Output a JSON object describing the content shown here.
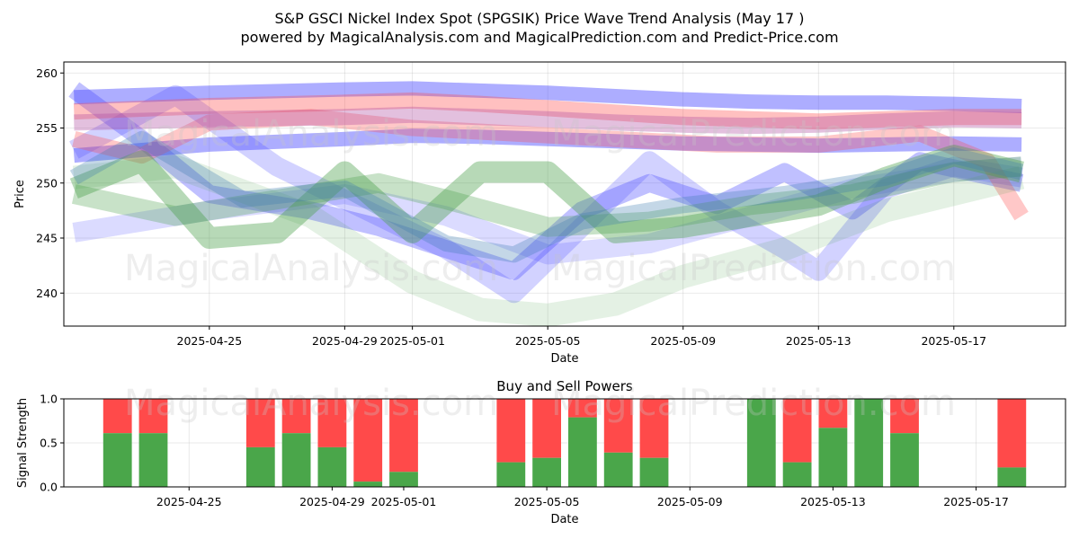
{
  "figure": {
    "title_line1": "S&P GSCI Nickel Index Spot (SPGSIK) Price Wave Trend Analysis (May 17 )",
    "title_line2": "powered by MagicalAnalysis.com and MagicalPrediction.com and Predict-Price.com",
    "watermark_left": "MagicalAnalysis.com",
    "watermark_right": "MagicalPrediction.com"
  },
  "chart_data": [
    {
      "type": "area",
      "xlabel": "Date",
      "ylabel": "Price",
      "x_range": [
        "2025-04-21",
        "2025-05-20"
      ],
      "ylim": [
        237,
        261
      ],
      "yticks": [
        240,
        245,
        250,
        255,
        260
      ],
      "xticks": [
        "2025-04-25",
        "2025-04-29",
        "2025-05-01",
        "2025-05-05",
        "2025-05-09",
        "2025-05-13",
        "2025-05-17"
      ],
      "grid": true,
      "series": [
        {
          "color": "#4a4aff",
          "opacity": 0.45,
          "width": 16,
          "x": [
            "2025-04-21",
            "2025-04-25",
            "2025-04-29",
            "2025-05-01",
            "2025-05-03",
            "2025-05-05",
            "2025-05-07",
            "2025-05-09",
            "2025-05-11",
            "2025-05-13",
            "2025-05-15",
            "2025-05-17",
            "2025-05-19"
          ],
          "y": [
            257.8,
            258.2,
            258.5,
            258.6,
            258.4,
            258.2,
            257.9,
            257.6,
            257.4,
            257.3,
            257.3,
            257.2,
            257.0
          ]
        },
        {
          "color": "#4a4aff",
          "opacity": 0.45,
          "width": 16,
          "x": [
            "2025-04-21",
            "2025-04-25",
            "2025-04-29",
            "2025-05-01",
            "2025-05-03",
            "2025-05-05",
            "2025-05-07",
            "2025-05-09",
            "2025-05-11",
            "2025-05-13",
            "2025-05-15",
            "2025-05-17",
            "2025-05-19"
          ],
          "y": [
            252.5,
            253.5,
            254.0,
            254.3,
            254.2,
            254.0,
            253.8,
            253.6,
            253.5,
            253.4,
            253.5,
            253.6,
            253.5
          ]
        },
        {
          "color": "#4a4aff",
          "opacity": 0.35,
          "width": 20,
          "x": [
            "2025-04-21",
            "2025-04-23",
            "2025-04-25",
            "2025-04-28",
            "2025-04-30",
            "2025-05-02",
            "2025-05-04",
            "2025-05-06",
            "2025-05-08",
            "2025-05-10",
            "2025-05-12",
            "2025-05-14",
            "2025-05-16",
            "2025-05-19"
          ],
          "y": [
            258.5,
            254.0,
            249.0,
            247.5,
            246.0,
            244.0,
            242.0,
            247.5,
            250.0,
            248.0,
            251.0,
            247.5,
            252.0,
            250.0
          ]
        },
        {
          "color": "#4a4aff",
          "opacity": 0.25,
          "width": 22,
          "x": [
            "2025-04-21",
            "2025-04-24",
            "2025-04-27",
            "2025-04-30",
            "2025-05-02",
            "2025-05-04",
            "2025-05-06",
            "2025-05-08",
            "2025-05-10",
            "2025-05-12",
            "2025-05-13",
            "2025-05-15",
            "2025-05-17",
            "2025-05-19"
          ],
          "y": [
            253.0,
            258.0,
            251.5,
            247.0,
            244.0,
            240.0,
            246.0,
            252.0,
            247.5,
            244.0,
            242.0,
            249.5,
            251.5,
            250.5
          ]
        },
        {
          "color": "#4a4aff",
          "opacity": 0.2,
          "width": 22,
          "x": [
            "2025-04-21",
            "2025-04-25",
            "2025-04-29",
            "2025-05-02",
            "2025-05-05",
            "2025-05-08",
            "2025-05-11",
            "2025-05-14",
            "2025-05-17",
            "2025-05-19"
          ],
          "y": [
            245.5,
            247.5,
            249.0,
            247.0,
            243.5,
            244.5,
            247.0,
            249.5,
            251.0,
            251.5
          ]
        },
        {
          "color": "#ff4a4a",
          "opacity": 0.35,
          "width": 18,
          "x": [
            "2025-04-21",
            "2025-04-25",
            "2025-04-29",
            "2025-05-01",
            "2025-05-03",
            "2025-05-05",
            "2025-05-07",
            "2025-05-09",
            "2025-05-11",
            "2025-05-13",
            "2025-05-15",
            "2025-05-17",
            "2025-05-19"
          ],
          "y": [
            256.5,
            257.0,
            257.3,
            257.5,
            257.2,
            256.8,
            256.4,
            256.0,
            255.8,
            255.6,
            255.8,
            256.0,
            256.0
          ]
        },
        {
          "color": "#ff4a4a",
          "opacity": 0.3,
          "width": 18,
          "x": [
            "2025-04-21",
            "2025-04-23",
            "2025-04-25",
            "2025-04-28",
            "2025-05-01",
            "2025-05-04",
            "2025-05-07",
            "2025-05-10",
            "2025-05-13",
            "2025-05-16",
            "2025-05-18",
            "2025-05-19"
          ],
          "y": [
            254.0,
            252.5,
            255.5,
            256.0,
            255.0,
            254.5,
            254.0,
            253.5,
            253.5,
            254.5,
            252.0,
            247.0
          ]
        },
        {
          "color": "#b04aa0",
          "opacity": 0.35,
          "width": 18,
          "x": [
            "2025-04-21",
            "2025-04-25",
            "2025-04-29",
            "2025-05-01",
            "2025-05-03",
            "2025-05-05",
            "2025-05-07",
            "2025-05-09",
            "2025-05-11",
            "2025-05-13",
            "2025-05-15",
            "2025-05-17",
            "2025-05-19"
          ],
          "y": [
            255.5,
            255.8,
            256.0,
            256.2,
            256.0,
            255.8,
            255.5,
            255.3,
            255.2,
            255.3,
            255.6,
            255.8,
            255.7
          ]
        },
        {
          "color": "#4aa04a",
          "opacity": 0.4,
          "width": 24,
          "x": [
            "2025-04-21",
            "2025-04-23",
            "2025-04-25",
            "2025-04-27",
            "2025-04-29",
            "2025-05-01",
            "2025-05-03",
            "2025-05-05",
            "2025-05-07",
            "2025-05-09",
            "2025-05-11",
            "2025-05-13",
            "2025-05-15",
            "2025-05-17",
            "2025-05-19"
          ],
          "y": [
            249.5,
            252.0,
            245.0,
            245.5,
            251.0,
            245.5,
            251.0,
            251.0,
            245.5,
            246.0,
            247.0,
            248.0,
            250.5,
            252.5,
            251.0
          ]
        },
        {
          "color": "#4aa04a",
          "opacity": 0.3,
          "width": 22,
          "x": [
            "2025-04-21",
            "2025-04-24",
            "2025-04-27",
            "2025-04-30",
            "2025-05-02",
            "2025-05-05",
            "2025-05-08",
            "2025-05-11",
            "2025-05-14",
            "2025-05-17",
            "2025-05-19"
          ],
          "y": [
            249.0,
            247.0,
            248.5,
            250.0,
            248.5,
            246.0,
            246.5,
            248.0,
            249.0,
            251.0,
            251.5
          ]
        },
        {
          "color": "#4aa04a",
          "opacity": 0.15,
          "width": 26,
          "x": [
            "2025-04-21",
            "2025-04-24",
            "2025-04-28",
            "2025-05-01",
            "2025-05-03",
            "2025-05-05",
            "2025-05-07",
            "2025-05-09",
            "2025-05-12",
            "2025-05-15",
            "2025-05-17",
            "2025-05-19"
          ],
          "y": [
            250.5,
            251.5,
            247.0,
            241.0,
            238.5,
            238.0,
            239.0,
            241.5,
            244.0,
            247.5,
            249.0,
            250.5
          ]
        },
        {
          "color": "#3a7ab0",
          "opacity": 0.3,
          "width": 18,
          "x": [
            "2025-04-21",
            "2025-04-23",
            "2025-04-26",
            "2025-04-29",
            "2025-05-02",
            "2025-05-04",
            "2025-05-06",
            "2025-05-09",
            "2025-05-12",
            "2025-05-15",
            "2025-05-17",
            "2025-05-19"
          ],
          "y": [
            250.5,
            254.0,
            248.5,
            249.5,
            244.5,
            243.5,
            246.5,
            248.0,
            249.0,
            250.5,
            252.5,
            251.0
          ]
        }
      ]
    },
    {
      "type": "bar",
      "title": "Buy and Sell Powers",
      "xlabel": "Date",
      "ylabel": "Signal Strength",
      "ylim": [
        0,
        1
      ],
      "yticks": [
        "0.0",
        "0.5",
        "1.0"
      ],
      "xticks": [
        "2025-04-25",
        "2025-04-29",
        "2025-05-01",
        "2025-05-05",
        "2025-05-09",
        "2025-05-13",
        "2025-05-17"
      ],
      "grid": true,
      "series": [
        {
          "name": "buy",
          "color": "#4aa64a"
        },
        {
          "name": "sell",
          "color": "#ff4a4a"
        }
      ],
      "categories": [
        "2025-04-23",
        "2025-04-24",
        "2025-04-27",
        "2025-04-28",
        "2025-04-29",
        "2025-04-30",
        "2025-05-01",
        "2025-05-04",
        "2025-05-05",
        "2025-05-06",
        "2025-05-07",
        "2025-05-08",
        "2025-05-11",
        "2025-05-12",
        "2025-05-13",
        "2025-05-14",
        "2025-05-15",
        "2025-05-18"
      ],
      "buy": [
        0.61,
        0.61,
        0.45,
        0.61,
        0.45,
        0.06,
        0.17,
        0.28,
        0.33,
        0.79,
        0.39,
        0.33,
        1.0,
        0.28,
        0.67,
        1.0,
        0.61,
        0.22
      ]
    }
  ]
}
